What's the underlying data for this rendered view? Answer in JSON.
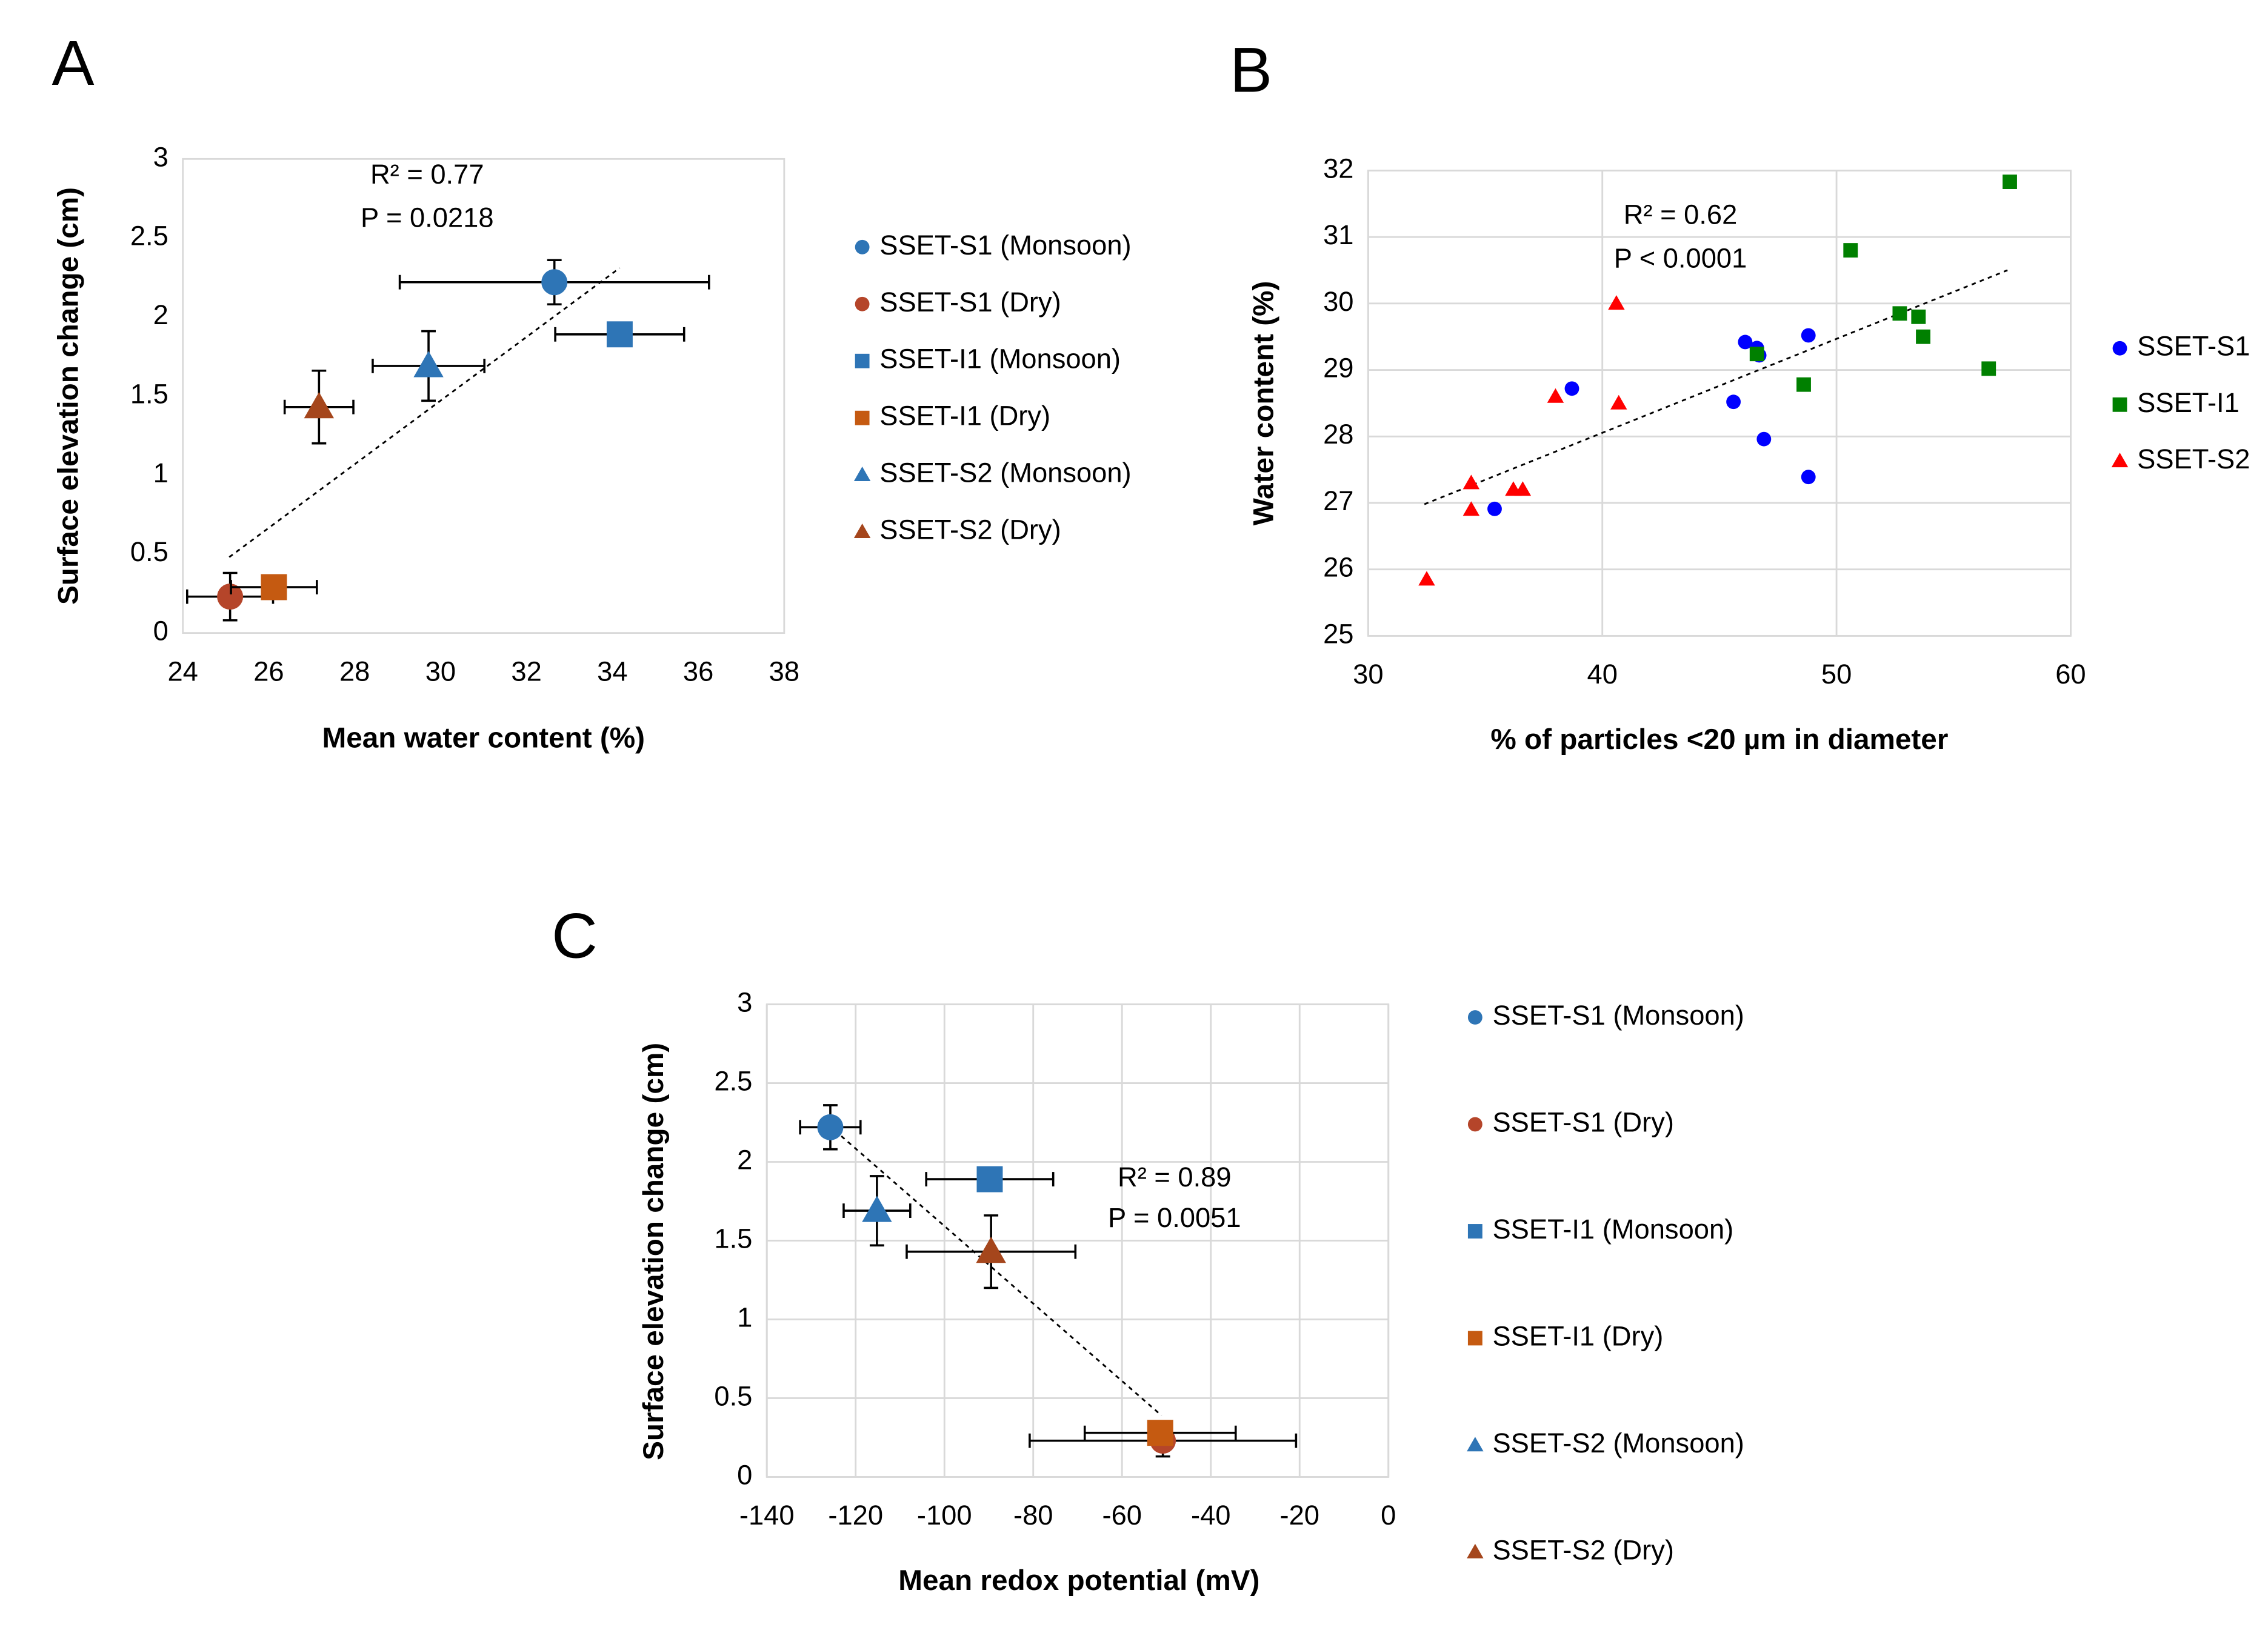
{
  "chart_data": [
    {
      "type": "scatter",
      "panel_label": "A",
      "xlabel": "Mean water content (%)",
      "ylabel": "Surface elevation change (cm)",
      "annotations": [
        "R² = 0.77",
        "P = 0.0218"
      ],
      "xlim": [
        24,
        38
      ],
      "ylim": [
        0,
        3
      ],
      "xticks": [
        24,
        26,
        28,
        30,
        32,
        34,
        36,
        38
      ],
      "yticks": [
        0,
        0.5,
        1,
        1.5,
        2,
        2.5,
        3
      ],
      "grid": false,
      "series": [
        {
          "name": "SSET-S1 (Monsoon)",
          "color": "#2e75b6",
          "marker": "circle",
          "x": [
            32.65
          ],
          "values": [
            2.22
          ],
          "xerr": [
            3.6
          ],
          "yerr": [
            0.14
          ]
        },
        {
          "name": "SSET-S1 (Dry)",
          "color": "#b5452a",
          "marker": "circle",
          "x": [
            25.1
          ],
          "values": [
            0.23
          ],
          "xerr": [
            1.0
          ],
          "yerr": [
            0.15
          ]
        },
        {
          "name": "SSET-I1 (Monsoon)",
          "color": "#2e75b6",
          "marker": "square",
          "x": [
            34.17
          ],
          "values": [
            1.89
          ],
          "xerr": [
            1.5
          ]
        },
        {
          "name": "SSET-I1 (Dry)",
          "color": "#c55a11",
          "marker": "square",
          "x": [
            26.12
          ],
          "values": [
            0.29
          ],
          "xerr": [
            1.0
          ],
          "yerr": [
            0.05
          ]
        },
        {
          "name": "SSET-S2 (Monsoon)",
          "color": "#2e75b6",
          "marker": "triangle",
          "x": [
            29.72
          ],
          "values": [
            1.69
          ],
          "xerr": [
            1.3
          ],
          "yerr": [
            0.22
          ]
        },
        {
          "name": "SSET-S2 (Dry)",
          "color": "#a5461c",
          "marker": "triangle",
          "x": [
            27.17
          ],
          "values": [
            1.43
          ],
          "xerr": [
            0.8
          ],
          "yerr": [
            0.23
          ]
        }
      ],
      "trendline": {
        "x": [
          25.08,
          34.17
        ],
        "values": [
          0.48,
          2.31
        ]
      }
    },
    {
      "type": "scatter",
      "panel_label": "B",
      "xlabel": "% of particles <20 µm in diameter",
      "ylabel": "Water content (%)",
      "annotations": [
        "R² = 0.62",
        "P < 0.0001"
      ],
      "xlim": [
        30,
        60
      ],
      "ylim": [
        25,
        32
      ],
      "xticks": [
        30,
        40,
        50,
        60
      ],
      "yticks": [
        25,
        26,
        27,
        28,
        29,
        30,
        31,
        32
      ],
      "grid": true,
      "series": [
        {
          "name": "SSET-S1",
          "color": "#0000ff",
          "marker": "circle",
          "x": [
            35.4,
            38.7,
            46.1,
            46.6,
            46.7,
            45.6,
            46.9,
            48.8,
            48.8
          ],
          "values": [
            26.91,
            28.72,
            29.42,
            29.33,
            29.22,
            28.52,
            27.96,
            27.39,
            29.52
          ]
        },
        {
          "name": "SSET-I1",
          "color": "#008000",
          "marker": "square",
          "x": [
            57.4,
            50.6,
            52.7,
            53.5,
            53.7,
            56.5,
            48.6,
            46.6
          ],
          "values": [
            31.83,
            30.8,
            29.85,
            29.8,
            29.5,
            29.02,
            28.78,
            29.24
          ]
        },
        {
          "name": "SSET-S2",
          "color": "#ff0000",
          "marker": "triangle",
          "x": [
            40.6,
            38.0,
            40.7,
            34.4,
            34.4,
            36.2,
            36.6,
            32.5
          ],
          "values": [
            30.0,
            28.6,
            28.5,
            27.3,
            26.9,
            27.2,
            27.2,
            25.85
          ]
        }
      ],
      "trendline": {
        "x": [
          32.4,
          57.3
        ],
        "values": [
          26.98,
          30.5
        ]
      }
    },
    {
      "type": "scatter",
      "panel_label": "C",
      "xlabel": "Mean redox potential (mV)",
      "ylabel": "Surface elevation change (cm)",
      "annotations": [
        "R² = 0.89",
        "P = 0.0051"
      ],
      "xlim": [
        -140,
        0
      ],
      "ylim": [
        0,
        3
      ],
      "xticks": [
        -140,
        -120,
        -100,
        -80,
        -60,
        -40,
        -20,
        0
      ],
      "yticks": [
        0,
        0.5,
        1,
        1.5,
        2,
        2.5,
        3
      ],
      "grid": true,
      "series": [
        {
          "name": "SSET-S1 (Monsoon)",
          "color": "#2e75b6",
          "marker": "circle",
          "x": [
            -125.7
          ],
          "values": [
            2.22
          ],
          "xerr": [
            6.8
          ],
          "yerr": [
            0.14
          ]
        },
        {
          "name": "SSET-S1 (Dry)",
          "color": "#b5452a",
          "marker": "circle",
          "x": [
            -50.8
          ],
          "values": [
            0.23
          ],
          "xerr": [
            30
          ],
          "yerr": [
            0.1
          ]
        },
        {
          "name": "SSET-I1 (Monsoon)",
          "color": "#2e75b6",
          "marker": "square",
          "x": [
            -89.8
          ],
          "values": [
            1.89
          ],
          "xerr": [
            14.3
          ]
        },
        {
          "name": "SSET-I1 (Dry)",
          "color": "#c55a11",
          "marker": "square",
          "x": [
            -51.4
          ],
          "values": [
            0.28
          ],
          "xerr": [
            17
          ]
        },
        {
          "name": "SSET-S2 (Monsoon)",
          "color": "#2e75b6",
          "marker": "triangle",
          "x": [
            -115.2
          ],
          "values": [
            1.69
          ],
          "xerr": [
            7.5
          ],
          "yerr": [
            0.22
          ]
        },
        {
          "name": "SSET-S2 (Dry)",
          "color": "#a5461c",
          "marker": "triangle",
          "x": [
            -89.5
          ],
          "values": [
            1.43
          ],
          "xerr": [
            19
          ],
          "yerr": [
            0.23
          ]
        }
      ],
      "trendline": {
        "x": [
          -124.7,
          -51.1
        ],
        "values": [
          2.2,
          0.39
        ]
      }
    }
  ]
}
